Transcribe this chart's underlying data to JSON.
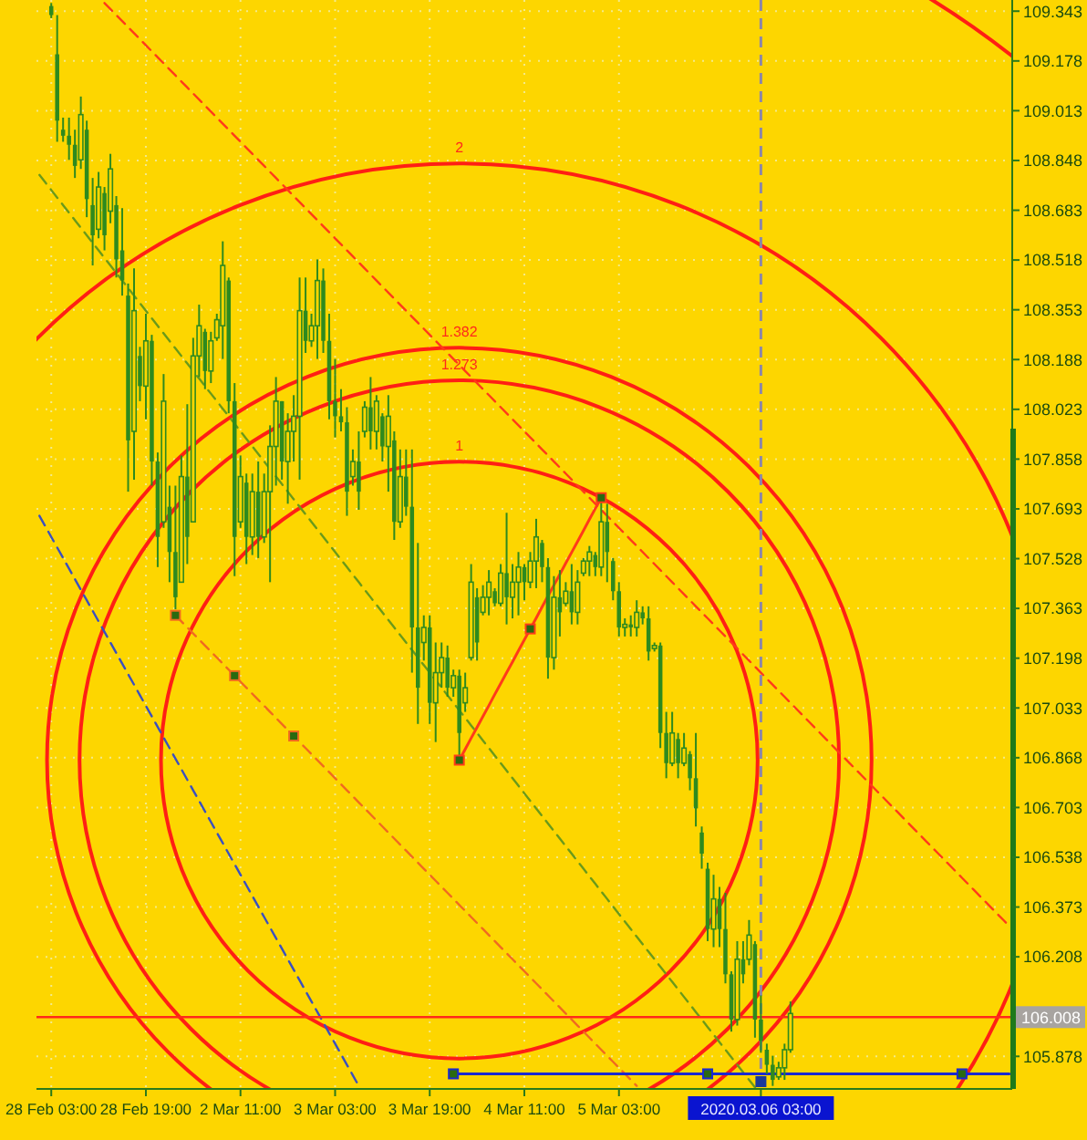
{
  "chart_data": {
    "type": "candlestick",
    "color": "#2e8a1e",
    "categories": [
      null,
      null,
      "28 Feb 03:00",
      null,
      null,
      null,
      null,
      null,
      null,
      null,
      null,
      null,
      null,
      null,
      null,
      null,
      null,
      null,
      "28 Feb 19:00",
      null,
      null,
      null,
      null,
      null,
      null,
      null,
      null,
      null,
      null,
      null,
      null,
      null,
      null,
      null,
      "2 Mar 11:00",
      null,
      null,
      null,
      null,
      null,
      null,
      null,
      null,
      null,
      null,
      null,
      null,
      null,
      null,
      null,
      "3 Mar 03:00",
      null,
      null,
      null,
      null,
      null,
      null,
      null,
      null,
      null,
      null,
      null,
      null,
      null,
      null,
      null,
      "3 Mar 19:00",
      null,
      null,
      null,
      null,
      null,
      null,
      null,
      null,
      null,
      null,
      null,
      null,
      null,
      null,
      null,
      "4 Mar 11:00",
      null,
      null,
      null,
      null,
      null,
      null,
      null,
      null,
      null,
      null,
      null,
      null,
      null,
      null,
      null,
      "5 Mar 03:00",
      null,
      null,
      null,
      null,
      null,
      null,
      null,
      null,
      null,
      null,
      null,
      null,
      null,
      null,
      null,
      null,
      null,
      null,
      null,
      null,
      null,
      null,
      null,
      "2020.03.06 03:00",
      null,
      null,
      null,
      null,
      null,
      null,
      null,
      null,
      null,
      null,
      null,
      null,
      null,
      null,
      null,
      null,
      null,
      null,
      null,
      null,
      null,
      null,
      null,
      null,
      null,
      null,
      null,
      null,
      null,
      null,
      null,
      null,
      null,
      null,
      null,
      null,
      null,
      null,
      null,
      null,
      null,
      null
    ],
    "ohlc": [
      null,
      null,
      [
        109.36,
        109.37,
        109.32,
        109.33
      ],
      [
        109.2,
        109.33,
        108.91,
        108.98
      ],
      [
        108.95,
        108.99,
        108.91,
        108.93
      ],
      [
        108.93,
        108.99,
        108.85,
        108.9
      ],
      [
        108.9,
        108.95,
        108.79,
        108.83
      ],
      [
        108.85,
        109.06,
        108.82,
        109.0
      ],
      [
        108.95,
        108.98,
        108.66,
        108.72
      ],
      [
        108.7,
        108.79,
        108.5,
        108.6
      ],
      [
        108.62,
        108.81,
        108.59,
        108.76
      ],
      [
        108.74,
        108.76,
        108.55,
        108.6
      ],
      [
        108.68,
        108.87,
        108.64,
        108.82
      ],
      [
        108.7,
        108.73,
        108.46,
        108.52
      ],
      [
        108.55,
        108.69,
        108.4,
        108.45
      ],
      [
        108.4,
        108.44,
        107.75,
        107.92
      ],
      [
        107.95,
        108.49,
        107.79,
        108.35
      ],
      [
        108.2,
        108.23,
        108.05,
        108.1
      ],
      [
        108.1,
        108.34,
        107.99,
        108.25
      ],
      [
        108.25,
        108.27,
        107.77,
        107.85
      ],
      [
        107.85,
        107.88,
        107.5,
        107.6
      ],
      [
        107.65,
        108.14,
        107.63,
        108.05
      ],
      [
        107.7,
        107.77,
        107.45,
        107.55
      ],
      [
        107.55,
        107.77,
        107.36,
        107.4
      ],
      [
        107.45,
        107.87,
        107.45,
        107.8
      ],
      [
        107.8,
        108.04,
        107.51,
        107.6
      ],
      [
        107.65,
        108.26,
        107.65,
        108.2
      ],
      [
        108.2,
        108.37,
        108.13,
        108.3
      ],
      [
        108.28,
        108.29,
        108.09,
        108.15
      ],
      [
        108.15,
        108.28,
        108.11,
        108.25
      ],
      [
        108.26,
        108.34,
        108.25,
        108.32
      ],
      [
        108.3,
        108.58,
        108.19,
        108.5
      ],
      [
        108.45,
        108.46,
        108.01,
        108.05
      ],
      [
        108.05,
        108.11,
        107.47,
        107.6
      ],
      [
        107.65,
        107.87,
        107.63,
        107.8
      ],
      [
        107.78,
        107.81,
        107.51,
        107.6
      ],
      [
        107.6,
        107.81,
        107.54,
        107.75
      ],
      [
        107.75,
        107.85,
        107.53,
        107.6
      ],
      [
        107.6,
        107.81,
        107.58,
        107.75
      ],
      [
        107.75,
        107.97,
        107.45,
        107.9
      ],
      [
        107.9,
        108.13,
        107.77,
        108.05
      ],
      [
        108.05,
        108.05,
        107.79,
        107.85
      ],
      [
        107.85,
        108.01,
        107.71,
        107.95
      ],
      [
        107.95,
        108.07,
        107.85,
        108.0
      ],
      [
        108.0,
        108.46,
        107.79,
        108.35
      ],
      [
        108.35,
        108.46,
        108.21,
        108.25
      ],
      [
        108.25,
        108.34,
        108.23,
        108.3
      ],
      [
        108.3,
        108.52,
        108.19,
        108.45
      ],
      [
        108.45,
        108.49,
        108.21,
        108.25
      ],
      [
        108.25,
        108.34,
        107.99,
        108.05
      ],
      [
        108.05,
        108.19,
        107.93,
        108.0
      ],
      [
        108.0,
        108.09,
        107.95,
        107.98
      ],
      [
        107.98,
        108.03,
        107.67,
        107.75
      ],
      [
        107.8,
        107.89,
        107.77,
        107.85
      ],
      [
        107.85,
        107.95,
        107.69,
        107.75
      ],
      [
        107.95,
        108.05,
        107.93,
        108.03
      ],
      [
        108.03,
        108.13,
        107.89,
        107.95
      ],
      [
        107.95,
        108.07,
        107.89,
        108.05
      ],
      [
        108.0,
        108.01,
        107.85,
        107.9
      ],
      [
        107.9,
        108.07,
        107.75,
        108.0
      ],
      [
        107.92,
        107.95,
        107.59,
        107.65
      ],
      [
        107.65,
        107.89,
        107.63,
        107.8
      ],
      [
        107.8,
        107.89,
        107.67,
        107.7
      ],
      [
        107.7,
        107.89,
        107.15,
        107.3
      ],
      [
        107.3,
        107.58,
        106.98,
        107.1
      ],
      [
        107.25,
        107.34,
        107.19,
        107.3
      ],
      [
        107.3,
        107.34,
        106.98,
        107.05
      ],
      [
        107.05,
        107.25,
        106.92,
        107.15
      ],
      [
        107.15,
        107.25,
        107.1,
        107.2
      ],
      [
        107.2,
        107.24,
        107.07,
        107.1
      ],
      [
        107.1,
        107.16,
        107.07,
        107.14
      ],
      [
        107.14,
        107.16,
        106.86,
        106.95
      ],
      [
        107.05,
        107.15,
        107.02,
        107.1
      ],
      [
        107.2,
        107.51,
        107.19,
        107.45
      ],
      [
        107.4,
        107.43,
        107.19,
        107.25
      ],
      [
        107.35,
        107.44,
        107.34,
        107.4
      ],
      [
        107.4,
        107.49,
        107.34,
        107.45
      ],
      [
        107.42,
        107.43,
        107.37,
        107.38
      ],
      [
        107.38,
        107.51,
        107.37,
        107.48
      ],
      [
        107.48,
        107.68,
        107.31,
        107.4
      ],
      [
        107.4,
        107.51,
        107.33,
        107.45
      ],
      [
        107.45,
        107.55,
        107.34,
        107.5
      ],
      [
        107.5,
        107.51,
        107.39,
        107.45
      ],
      [
        107.45,
        107.55,
        107.43,
        107.52
      ],
      [
        107.52,
        107.66,
        107.43,
        107.6
      ],
      [
        107.58,
        107.59,
        107.45,
        107.5
      ],
      [
        107.5,
        107.53,
        107.13,
        107.2
      ],
      [
        107.2,
        107.47,
        107.16,
        107.4
      ],
      [
        107.4,
        107.49,
        107.27,
        107.35
      ],
      [
        107.38,
        107.45,
        107.37,
        107.42
      ],
      [
        107.42,
        107.51,
        107.31,
        107.35
      ],
      [
        107.35,
        107.49,
        107.31,
        107.45
      ],
      [
        107.48,
        107.53,
        107.47,
        107.52
      ],
      [
        107.52,
        107.57,
        107.47,
        107.55
      ],
      [
        107.54,
        107.55,
        107.47,
        107.5
      ],
      [
        107.5,
        107.73,
        107.47,
        107.65
      ],
      [
        107.65,
        107.71,
        107.45,
        107.55
      ],
      [
        107.52,
        107.53,
        107.39,
        107.42
      ],
      [
        107.42,
        107.45,
        107.27,
        107.3
      ],
      [
        107.3,
        107.33,
        107.27,
        107.31
      ],
      [
        107.31,
        107.34,
        107.27,
        107.3
      ],
      [
        107.3,
        107.39,
        107.27,
        107.35
      ],
      [
        107.35,
        107.37,
        107.31,
        107.33
      ],
      [
        107.33,
        107.37,
        107.19,
        107.22
      ],
      [
        107.23,
        107.25,
        107.22,
        107.24
      ],
      [
        107.24,
        107.25,
        106.9,
        106.95
      ],
      [
        106.95,
        107.02,
        106.8,
        106.85
      ],
      [
        106.85,
        107.02,
        106.84,
        106.95
      ],
      [
        106.93,
        106.95,
        106.8,
        106.85
      ],
      [
        106.85,
        106.95,
        106.84,
        106.9
      ],
      [
        106.88,
        106.89,
        106.76,
        106.8
      ],
      [
        106.8,
        106.95,
        106.64,
        106.7
      ],
      [
        106.62,
        106.64,
        106.5,
        106.55
      ],
      [
        106.5,
        106.52,
        106.26,
        106.3
      ],
      [
        106.3,
        106.48,
        106.24,
        106.4
      ],
      [
        106.4,
        106.44,
        106.24,
        106.3
      ],
      [
        106.3,
        106.42,
        106.12,
        106.15
      ],
      [
        106.15,
        106.16,
        105.96,
        106.0
      ],
      [
        106.0,
        106.26,
        105.98,
        106.2
      ],
      [
        106.2,
        106.26,
        106.12,
        106.15
      ],
      [
        106.2,
        106.33,
        106.18,
        106.28
      ],
      [
        106.25,
        106.26,
        105.94,
        106.0
      ],
      [
        106.0,
        106.08,
        105.89,
        105.93
      ],
      [
        105.9,
        105.92,
        105.82,
        105.85
      ],
      [
        105.85,
        105.88,
        105.78,
        105.8
      ],
      [
        105.81,
        105.86,
        105.8,
        105.84
      ],
      [
        105.84,
        105.92,
        105.8,
        105.9
      ],
      [
        105.9,
        106.06,
        105.89,
        106.02
      ],
      null,
      null,
      null,
      null,
      null,
      null,
      null,
      null,
      null,
      null,
      null,
      null,
      null,
      null,
      null,
      null,
      null,
      null,
      null,
      null,
      null,
      null,
      null,
      null,
      null,
      null,
      null,
      null,
      null,
      null,
      null,
      null,
      null,
      null,
      null,
      null,
      null
    ],
    "ylim": [
      105.77,
      109.38
    ],
    "yticks": [
      109.343,
      109.178,
      109.013,
      108.848,
      108.683,
      108.518,
      108.353,
      108.188,
      108.023,
      107.858,
      107.693,
      107.528,
      107.363,
      107.198,
      107.033,
      106.868,
      106.703,
      106.538,
      106.373,
      106.208,
      105.878
    ],
    "grid": true,
    "series": [
      {
        "type": "line",
        "color": "#ff3a1a",
        "line_style": "dashed",
        "values": [
          null,
          null,
          null,
          null,
          null,
          null,
          null,
          null,
          null,
          null,
          null,
          109.37,
          109.35,
          109.33,
          109.31,
          109.29,
          109.27,
          109.25,
          109.23,
          109.21,
          109.19,
          109.17,
          109.15,
          109.13,
          109.11,
          109.09,
          109.07,
          109.05,
          109.03,
          109.01,
          108.99,
          108.97,
          108.95,
          108.93,
          108.91,
          108.89,
          108.87,
          108.85,
          108.83,
          108.81,
          108.79,
          108.77,
          108.75,
          108.73,
          108.71,
          108.69,
          108.67,
          108.65,
          108.63,
          108.61,
          108.59,
          108.57,
          108.55,
          108.53,
          108.51,
          108.49,
          108.47,
          108.45,
          108.43,
          108.41,
          108.39,
          108.37,
          108.35,
          108.33,
          108.31,
          108.29,
          108.27,
          108.25,
          108.23,
          108.21,
          108.19,
          108.17,
          108.15,
          108.13,
          108.11,
          108.09,
          108.07,
          108.05,
          108.03,
          108.01,
          107.99,
          107.97,
          107.95,
          107.93,
          107.91,
          107.89,
          107.87,
          107.85,
          107.83,
          107.81,
          107.79,
          107.77,
          107.75,
          107.73,
          107.71,
          107.69,
          107.67,
          107.65,
          107.63,
          107.61,
          107.59,
          107.57,
          107.55,
          107.53,
          107.51,
          107.49,
          107.47,
          107.45,
          107.43,
          107.41,
          107.39,
          107.37,
          107.35,
          107.33,
          107.31,
          107.29,
          107.27,
          107.25,
          107.23,
          107.21,
          107.19,
          107.17,
          107.15,
          107.13,
          107.11,
          107.09,
          107.07,
          107.05,
          107.03,
          107.01,
          106.99,
          106.97,
          106.95,
          106.93,
          106.91,
          106.89,
          106.87,
          106.85,
          106.83,
          106.81,
          106.79,
          106.77,
          106.75,
          106.73,
          106.71,
          106.69,
          106.67,
          106.65,
          106.63,
          106.61,
          106.59,
          106.57,
          106.55,
          106.53,
          106.51,
          106.49,
          106.47,
          106.45,
          106.43,
          106.41,
          106.39,
          106.37,
          106.35,
          106.33,
          106.31
        ]
      },
      {
        "type": "line",
        "color": "#6a9a1a",
        "line_style": "dashed",
        "values": [
          108.8,
          108.775,
          108.75,
          108.725,
          108.7,
          108.675,
          108.65,
          108.625,
          108.6,
          108.575,
          108.55,
          108.525,
          108.5,
          108.475,
          108.45,
          108.425,
          108.4,
          108.375,
          108.35,
          108.325,
          108.3,
          108.275,
          108.25,
          108.225,
          108.2,
          108.175,
          108.15,
          108.125,
          108.1,
          108.075,
          108.05,
          108.025,
          108.0,
          107.975,
          107.95,
          107.925,
          107.9,
          107.875,
          107.85,
          107.825,
          107.8,
          107.775,
          107.75,
          107.725,
          107.7,
          107.675,
          107.65,
          107.625,
          107.6,
          107.575,
          107.55,
          107.525,
          107.5,
          107.475,
          107.45,
          107.425,
          107.4,
          107.375,
          107.35,
          107.325,
          107.3,
          107.275,
          107.25,
          107.225,
          107.2,
          107.175,
          107.15,
          107.125,
          107.1,
          107.075,
          107.05,
          107.025,
          107.0,
          106.975,
          106.95,
          106.925,
          106.9,
          106.875,
          106.85,
          106.825,
          106.8,
          106.775,
          106.75,
          106.725,
          106.7,
          106.675,
          106.65,
          106.625,
          106.6,
          106.575,
          106.55,
          106.525,
          106.5,
          106.475,
          106.45,
          106.425,
          106.4,
          106.375,
          106.35,
          106.325,
          106.3,
          106.275,
          106.25,
          106.225,
          106.2,
          106.175,
          106.15,
          106.125,
          106.1,
          106.075,
          106.05,
          106.025,
          106.0,
          105.975,
          105.95,
          105.925,
          105.9,
          105.875,
          105.85,
          105.825,
          105.8,
          105.775,
          null,
          null,
          null,
          null,
          null,
          null,
          null,
          null,
          null,
          null,
          null,
          null,
          null,
          null,
          null,
          null,
          null,
          null,
          null,
          null,
          null,
          null,
          null,
          null,
          null,
          null,
          null,
          null,
          null,
          null,
          null,
          null,
          null,
          null,
          null,
          null,
          null,
          null,
          null,
          null,
          null,
          null,
          null
        ]
      },
      {
        "type": "line",
        "color": "#3a50c0",
        "line_style": "dashed",
        "values": [
          107.67,
          107.635,
          107.6,
          107.565,
          107.53,
          107.495,
          107.46,
          107.425,
          107.39,
          107.355,
          107.32,
          107.285,
          107.25,
          107.215,
          107.18,
          107.145,
          107.11,
          107.075,
          107.04,
          107.005,
          106.97,
          106.935,
          106.9,
          106.865,
          106.83,
          106.795,
          106.76,
          106.725,
          106.69,
          106.655,
          106.62,
          106.585,
          106.55,
          106.515,
          106.48,
          106.445,
          106.41,
          106.375,
          106.34,
          106.305,
          106.27,
          106.235,
          106.2,
          106.165,
          106.13,
          106.095,
          106.06,
          106.025,
          105.99,
          105.955,
          105.92,
          105.885,
          105.85,
          105.815,
          105.78,
          null,
          null,
          null,
          null,
          null,
          null,
          null,
          null,
          null,
          null,
          null,
          null,
          null,
          null,
          null,
          null,
          null,
          null,
          null,
          null,
          null,
          null,
          null,
          null,
          null,
          null,
          null,
          null,
          null,
          null,
          null,
          null,
          null,
          null,
          null,
          null,
          null,
          null,
          null,
          null,
          null,
          null,
          null,
          null,
          null,
          null,
          null,
          null,
          null,
          null,
          null,
          null,
          null,
          null,
          null,
          null,
          null,
          null,
          null,
          null,
          null,
          null,
          null,
          null,
          null,
          null,
          null,
          null,
          null,
          null,
          null,
          null,
          null,
          null,
          null,
          null,
          null,
          null,
          null,
          null,
          null,
          null,
          null,
          null,
          null,
          null,
          null,
          null,
          null,
          null,
          null,
          null,
          null,
          null,
          null,
          null,
          null,
          null,
          null,
          null,
          null,
          null,
          null,
          null,
          null,
          null,
          null,
          null,
          null,
          null
        ]
      },
      {
        "type": "line",
        "color": "#f06a20",
        "line_style": "dashed",
        "values": [
          null,
          null,
          null,
          null,
          null,
          null,
          null,
          null,
          null,
          null,
          null,
          null,
          null,
          null,
          null,
          null,
          null,
          null,
          null,
          null,
          null,
          null,
          null,
          107.34,
          107.32,
          107.3,
          107.28,
          107.26,
          107.24,
          107.22,
          107.2,
          107.18,
          107.16,
          107.14,
          107.12,
          107.1,
          107.08,
          107.06,
          107.04,
          107.02,
          107.0,
          106.98,
          106.96,
          106.94,
          106.92,
          106.9,
          106.88,
          106.86,
          106.84,
          106.82,
          106.8,
          106.78,
          106.76,
          106.74,
          106.72,
          106.7,
          106.68,
          106.66,
          106.64,
          106.62,
          106.6,
          106.58,
          106.56,
          106.54,
          106.52,
          106.5,
          106.48,
          106.46,
          106.44,
          106.42,
          106.4,
          106.38,
          106.36,
          106.34,
          106.32,
          106.3,
          106.28,
          106.26,
          106.24,
          106.22,
          106.2,
          106.18,
          106.16,
          106.14,
          106.12,
          106.1,
          106.08,
          106.06,
          106.04,
          106.02,
          106.0,
          105.98,
          105.96,
          105.94,
          105.92,
          105.9,
          105.88,
          105.86,
          105.84,
          105.82,
          105.8,
          105.78,
          null,
          null,
          null,
          null,
          null,
          null,
          null,
          null,
          null,
          null,
          null,
          null,
          null,
          null,
          null,
          null,
          null,
          null,
          null,
          null,
          null,
          null,
          null,
          null,
          null,
          null,
          null,
          null,
          null,
          null,
          null,
          null,
          null,
          null,
          null,
          null,
          null,
          null,
          null,
          null,
          null,
          null,
          null,
          null,
          null,
          null,
          null,
          null,
          null,
          null,
          null,
          null,
          null,
          null,
          null,
          null,
          null,
          null,
          null,
          null,
          null,
          null,
          null
        ]
      },
      {
        "type": "line",
        "color": "#ff3a1a",
        "line_style": "solid",
        "values": [
          null,
          null,
          null,
          null,
          null,
          null,
          null,
          null,
          null,
          null,
          null,
          null,
          null,
          null,
          null,
          null,
          null,
          null,
          null,
          null,
          null,
          null,
          null,
          null,
          null,
          null,
          null,
          null,
          null,
          null,
          null,
          null,
          null,
          null,
          null,
          null,
          null,
          null,
          null,
          null,
          null,
          null,
          null,
          null,
          null,
          null,
          null,
          null,
          null,
          null,
          null,
          null,
          null,
          null,
          null,
          null,
          null,
          null,
          null,
          null,
          null,
          null,
          null,
          null,
          null,
          null,
          null,
          null,
          null,
          null,
          null,
          106.86,
          106.896,
          106.933,
          106.969,
          107.005,
          107.041,
          107.078,
          107.114,
          107.15,
          107.186,
          107.223,
          107.259,
          107.295,
          107.331,
          107.368,
          107.404,
          107.44,
          107.476,
          107.513,
          107.549,
          107.585,
          107.621,
          107.658,
          107.694,
          107.73,
          null,
          null,
          null,
          null,
          null,
          null,
          null,
          null,
          null,
          null,
          null,
          null,
          null,
          null,
          null,
          null,
          null,
          null,
          null,
          null,
          null,
          null,
          null,
          null,
          null,
          null,
          null,
          null,
          null,
          null,
          null,
          null,
          null,
          null,
          null,
          null,
          null,
          null,
          null,
          null,
          null,
          null,
          null,
          null,
          null,
          null,
          null,
          null,
          null,
          null,
          null,
          null,
          null,
          null,
          null,
          null,
          null,
          null,
          null,
          null,
          null,
          null,
          null,
          null,
          null,
          null,
          null,
          null,
          null
        ]
      },
      {
        "type": "line",
        "color": "#1a2ad0",
        "line_style": "solid",
        "values": [
          null,
          null,
          null,
          null,
          null,
          null,
          null,
          null,
          null,
          null,
          null,
          null,
          null,
          null,
          null,
          null,
          null,
          null,
          null,
          null,
          null,
          null,
          null,
          null,
          null,
          null,
          null,
          null,
          null,
          null,
          null,
          null,
          null,
          null,
          null,
          null,
          null,
          null,
          null,
          null,
          null,
          null,
          null,
          null,
          null,
          null,
          null,
          null,
          null,
          null,
          null,
          null,
          null,
          null,
          null,
          null,
          null,
          null,
          null,
          null,
          null,
          null,
          null,
          null,
          null,
          null,
          null,
          null,
          null,
          null,
          105.82,
          105.82,
          105.82,
          105.82,
          105.82,
          105.82,
          105.82,
          105.82,
          105.82,
          105.82,
          105.82,
          105.82,
          105.82,
          105.82,
          105.82,
          105.82,
          105.82,
          105.82,
          105.82,
          105.82,
          105.82,
          105.82,
          105.82,
          105.82,
          105.82,
          105.82,
          105.82,
          105.82,
          105.82,
          105.82,
          105.82,
          105.82,
          105.82,
          105.82,
          105.82,
          105.82,
          105.82,
          105.82,
          105.82,
          105.82,
          105.82,
          105.82,
          105.82,
          105.82,
          105.82,
          105.82,
          105.82,
          105.82,
          105.82,
          105.82,
          105.82,
          105.82,
          105.82,
          105.82,
          105.82,
          105.82,
          105.82,
          105.82,
          105.82,
          105.82,
          105.82,
          105.82,
          105.82,
          105.82,
          105.82,
          105.82,
          105.82,
          105.82,
          105.82,
          105.82,
          105.82,
          105.82,
          105.82,
          105.82,
          105.82,
          105.82,
          105.82,
          105.82,
          105.82,
          105.82,
          105.82,
          105.82,
          105.82,
          105.82,
          105.82,
          105.82,
          105.82,
          105.82,
          105.82,
          105.82,
          105.82,
          105.82,
          105.82,
          105.82,
          105.82
        ]
      }
    ],
    "ref_lines": [
      {
        "axis": "y",
        "value": 106.008,
        "label": "106.008",
        "color": "#ff2a1a"
      },
      {
        "axis": "x",
        "value": "2020.03.06 03:00",
        "color": "#8c86a8",
        "line_style": "dashed"
      }
    ],
    "annotations": [
      "1",
      "1.273",
      "1.382",
      "2"
    ]
  }
}
